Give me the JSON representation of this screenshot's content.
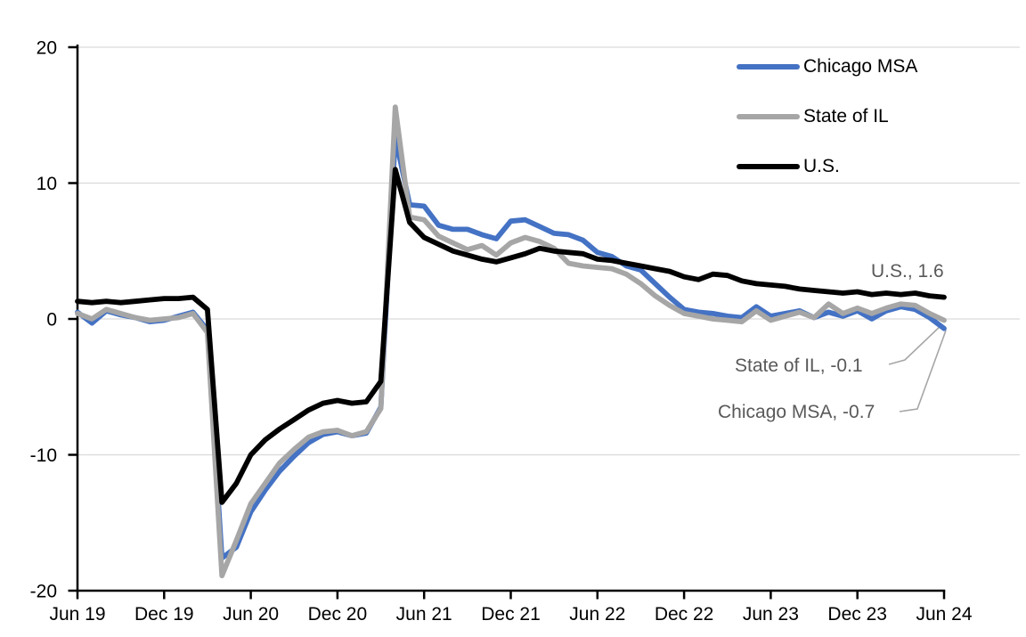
{
  "chart_data": {
    "type": "line",
    "x_tick_labels": [
      "Jun 19",
      "Dec 19",
      "Jun 20",
      "Dec 20",
      "Jun 21",
      "Dec 21",
      "Jun 22",
      "Dec 22",
      "Jun 23",
      "Dec 23",
      "Jun 24"
    ],
    "y_ticks": [
      20,
      10,
      0,
      -10,
      -20
    ],
    "ylim": [
      -20,
      20
    ],
    "grid": true,
    "legend_position": "top-right-inside",
    "months": [
      "Jun 19",
      "Jul 19",
      "Aug 19",
      "Sep 19",
      "Oct 19",
      "Nov 19",
      "Dec 19",
      "Jan 20",
      "Feb 20",
      "Mar 20",
      "Apr 20",
      "May 20",
      "Jun 20",
      "Jul 20",
      "Aug 20",
      "Sep 20",
      "Oct 20",
      "Nov 20",
      "Dec 20",
      "Jan 21",
      "Feb 21",
      "Mar 21",
      "Apr 21",
      "May 21",
      "Jun 21",
      "Jul 21",
      "Aug 21",
      "Sep 21",
      "Oct 21",
      "Nov 21",
      "Dec 21",
      "Jan 22",
      "Feb 22",
      "Mar 22",
      "Apr 22",
      "May 22",
      "Jun 22",
      "Jul 22",
      "Aug 22",
      "Sep 22",
      "Oct 22",
      "Nov 22",
      "Dec 22",
      "Jan 23",
      "Feb 23",
      "Mar 23",
      "Apr 23",
      "May 23",
      "Jun 23",
      "Jul 23",
      "Aug 23",
      "Sep 23",
      "Oct 23",
      "Nov 23",
      "Dec 23",
      "Jan 24",
      "Feb 24",
      "Mar 24",
      "Apr 24",
      "May 24",
      "Jun 24"
    ],
    "series": [
      {
        "name": "Chicago MSA",
        "color": "#4472C4",
        "values": [
          0.5,
          -0.3,
          0.6,
          0.3,
          0.1,
          -0.2,
          -0.1,
          0.2,
          0.5,
          -0.8,
          -17.6,
          -16.8,
          -14.2,
          -12.6,
          -11.2,
          -10.1,
          -9.1,
          -8.5,
          -8.3,
          -8.6,
          -8.4,
          -6.5,
          13.4,
          8.4,
          8.3,
          6.9,
          6.6,
          6.6,
          6.2,
          5.9,
          7.2,
          7.3,
          6.8,
          6.3,
          6.2,
          5.8,
          4.9,
          4.6,
          3.9,
          3.6,
          2.6,
          1.6,
          0.7,
          0.5,
          0.4,
          0.2,
          0.1,
          0.9,
          0.2,
          0.4,
          0.6,
          0.1,
          0.5,
          0.2,
          0.6,
          0.0,
          0.6,
          0.9,
          0.7,
          0.1,
          -0.7
        ]
      },
      {
        "name": "State of IL",
        "color": "#A6A6A6",
        "values": [
          0.4,
          0.0,
          0.7,
          0.4,
          0.1,
          -0.1,
          0.0,
          0.1,
          0.4,
          -1.0,
          -18.9,
          -16.3,
          -13.6,
          -12.1,
          -10.6,
          -9.6,
          -8.7,
          -8.3,
          -8.2,
          -8.6,
          -8.3,
          -6.6,
          15.6,
          7.5,
          7.3,
          6.1,
          5.6,
          5.1,
          5.4,
          4.7,
          5.6,
          6.0,
          5.7,
          5.2,
          4.1,
          3.9,
          3.8,
          3.7,
          3.3,
          2.6,
          1.7,
          1.0,
          0.4,
          0.2,
          0.0,
          -0.1,
          -0.2,
          0.6,
          -0.1,
          0.2,
          0.5,
          0.1,
          1.1,
          0.4,
          0.8,
          0.4,
          0.8,
          1.1,
          1.0,
          0.4,
          -0.1
        ]
      },
      {
        "name": "U.S.",
        "color": "#000000",
        "values": [
          1.3,
          1.2,
          1.3,
          1.2,
          1.3,
          1.4,
          1.5,
          1.5,
          1.6,
          0.7,
          -13.5,
          -12.1,
          -10.0,
          -8.9,
          -8.1,
          -7.4,
          -6.7,
          -6.2,
          -6.0,
          -6.2,
          -6.1,
          -4.6,
          11.0,
          7.1,
          6.0,
          5.5,
          5.0,
          4.7,
          4.4,
          4.2,
          4.5,
          4.8,
          5.2,
          5.0,
          4.9,
          4.8,
          4.4,
          4.3,
          4.1,
          3.9,
          3.7,
          3.5,
          3.1,
          2.9,
          3.3,
          3.2,
          2.8,
          2.6,
          2.5,
          2.4,
          2.2,
          2.1,
          2.0,
          1.9,
          2.0,
          1.8,
          1.9,
          1.8,
          1.9,
          1.7,
          1.6
        ]
      }
    ],
    "annotations": {
      "us": {
        "text": "U.S., 1.6",
        "value": 1.6
      },
      "il": {
        "text": "State of IL, -0.1",
        "value": -0.1
      },
      "chicago": {
        "text": "Chicago MSA, -0.7",
        "value": -0.7
      }
    },
    "colors": {
      "gridline": "#D9D9D9",
      "axis": "#000000",
      "annotation_text": "#595959",
      "leader_line": "#A6A6A6"
    }
  }
}
